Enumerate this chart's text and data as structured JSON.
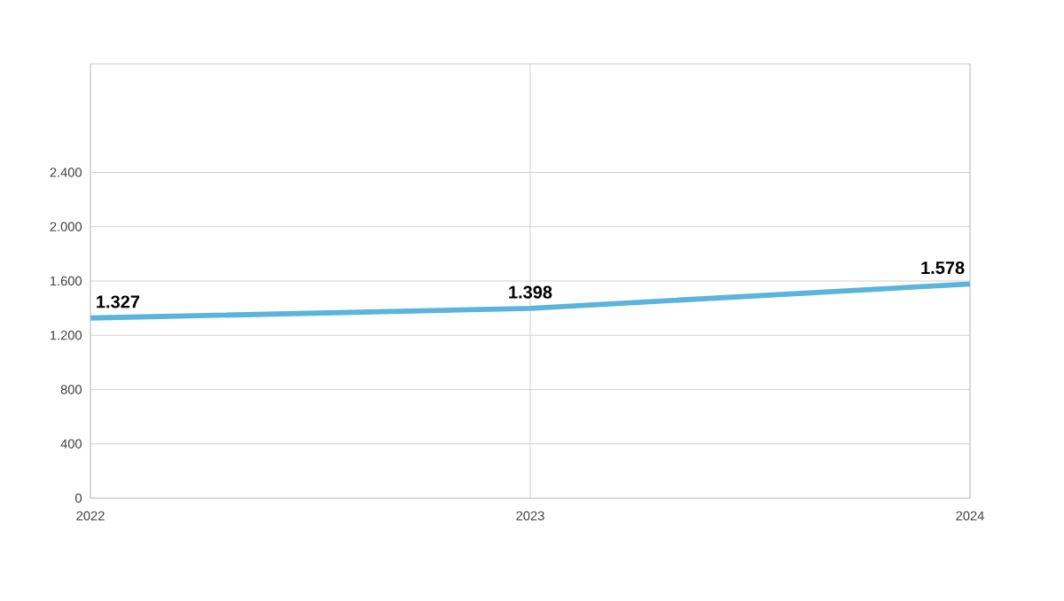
{
  "chart_data": {
    "type": "line",
    "x": [
      2022,
      2023,
      2024
    ],
    "series": [
      {
        "color": "#5ab4dc",
        "values": [
          1327,
          1398,
          1578
        ],
        "value_labels": [
          "1.327",
          "1.398",
          "1.578"
        ]
      }
    ],
    "xlim": [
      2022,
      2024
    ],
    "xticks": [
      2022,
      2023,
      2024
    ],
    "ylim": [
      0,
      3200
    ],
    "yticks": [
      0,
      400,
      {
        "value": 800,
        "label": "800"
      },
      {
        "value": 1200,
        "label": "1.200"
      },
      {
        "value": 1600,
        "label": "1.600"
      },
      {
        "value": 2000,
        "label": "2.000"
      },
      {
        "value": 2400,
        "label": "2.400"
      }
    ],
    "grid": true,
    "marker": "none",
    "line_style": "solid"
  }
}
